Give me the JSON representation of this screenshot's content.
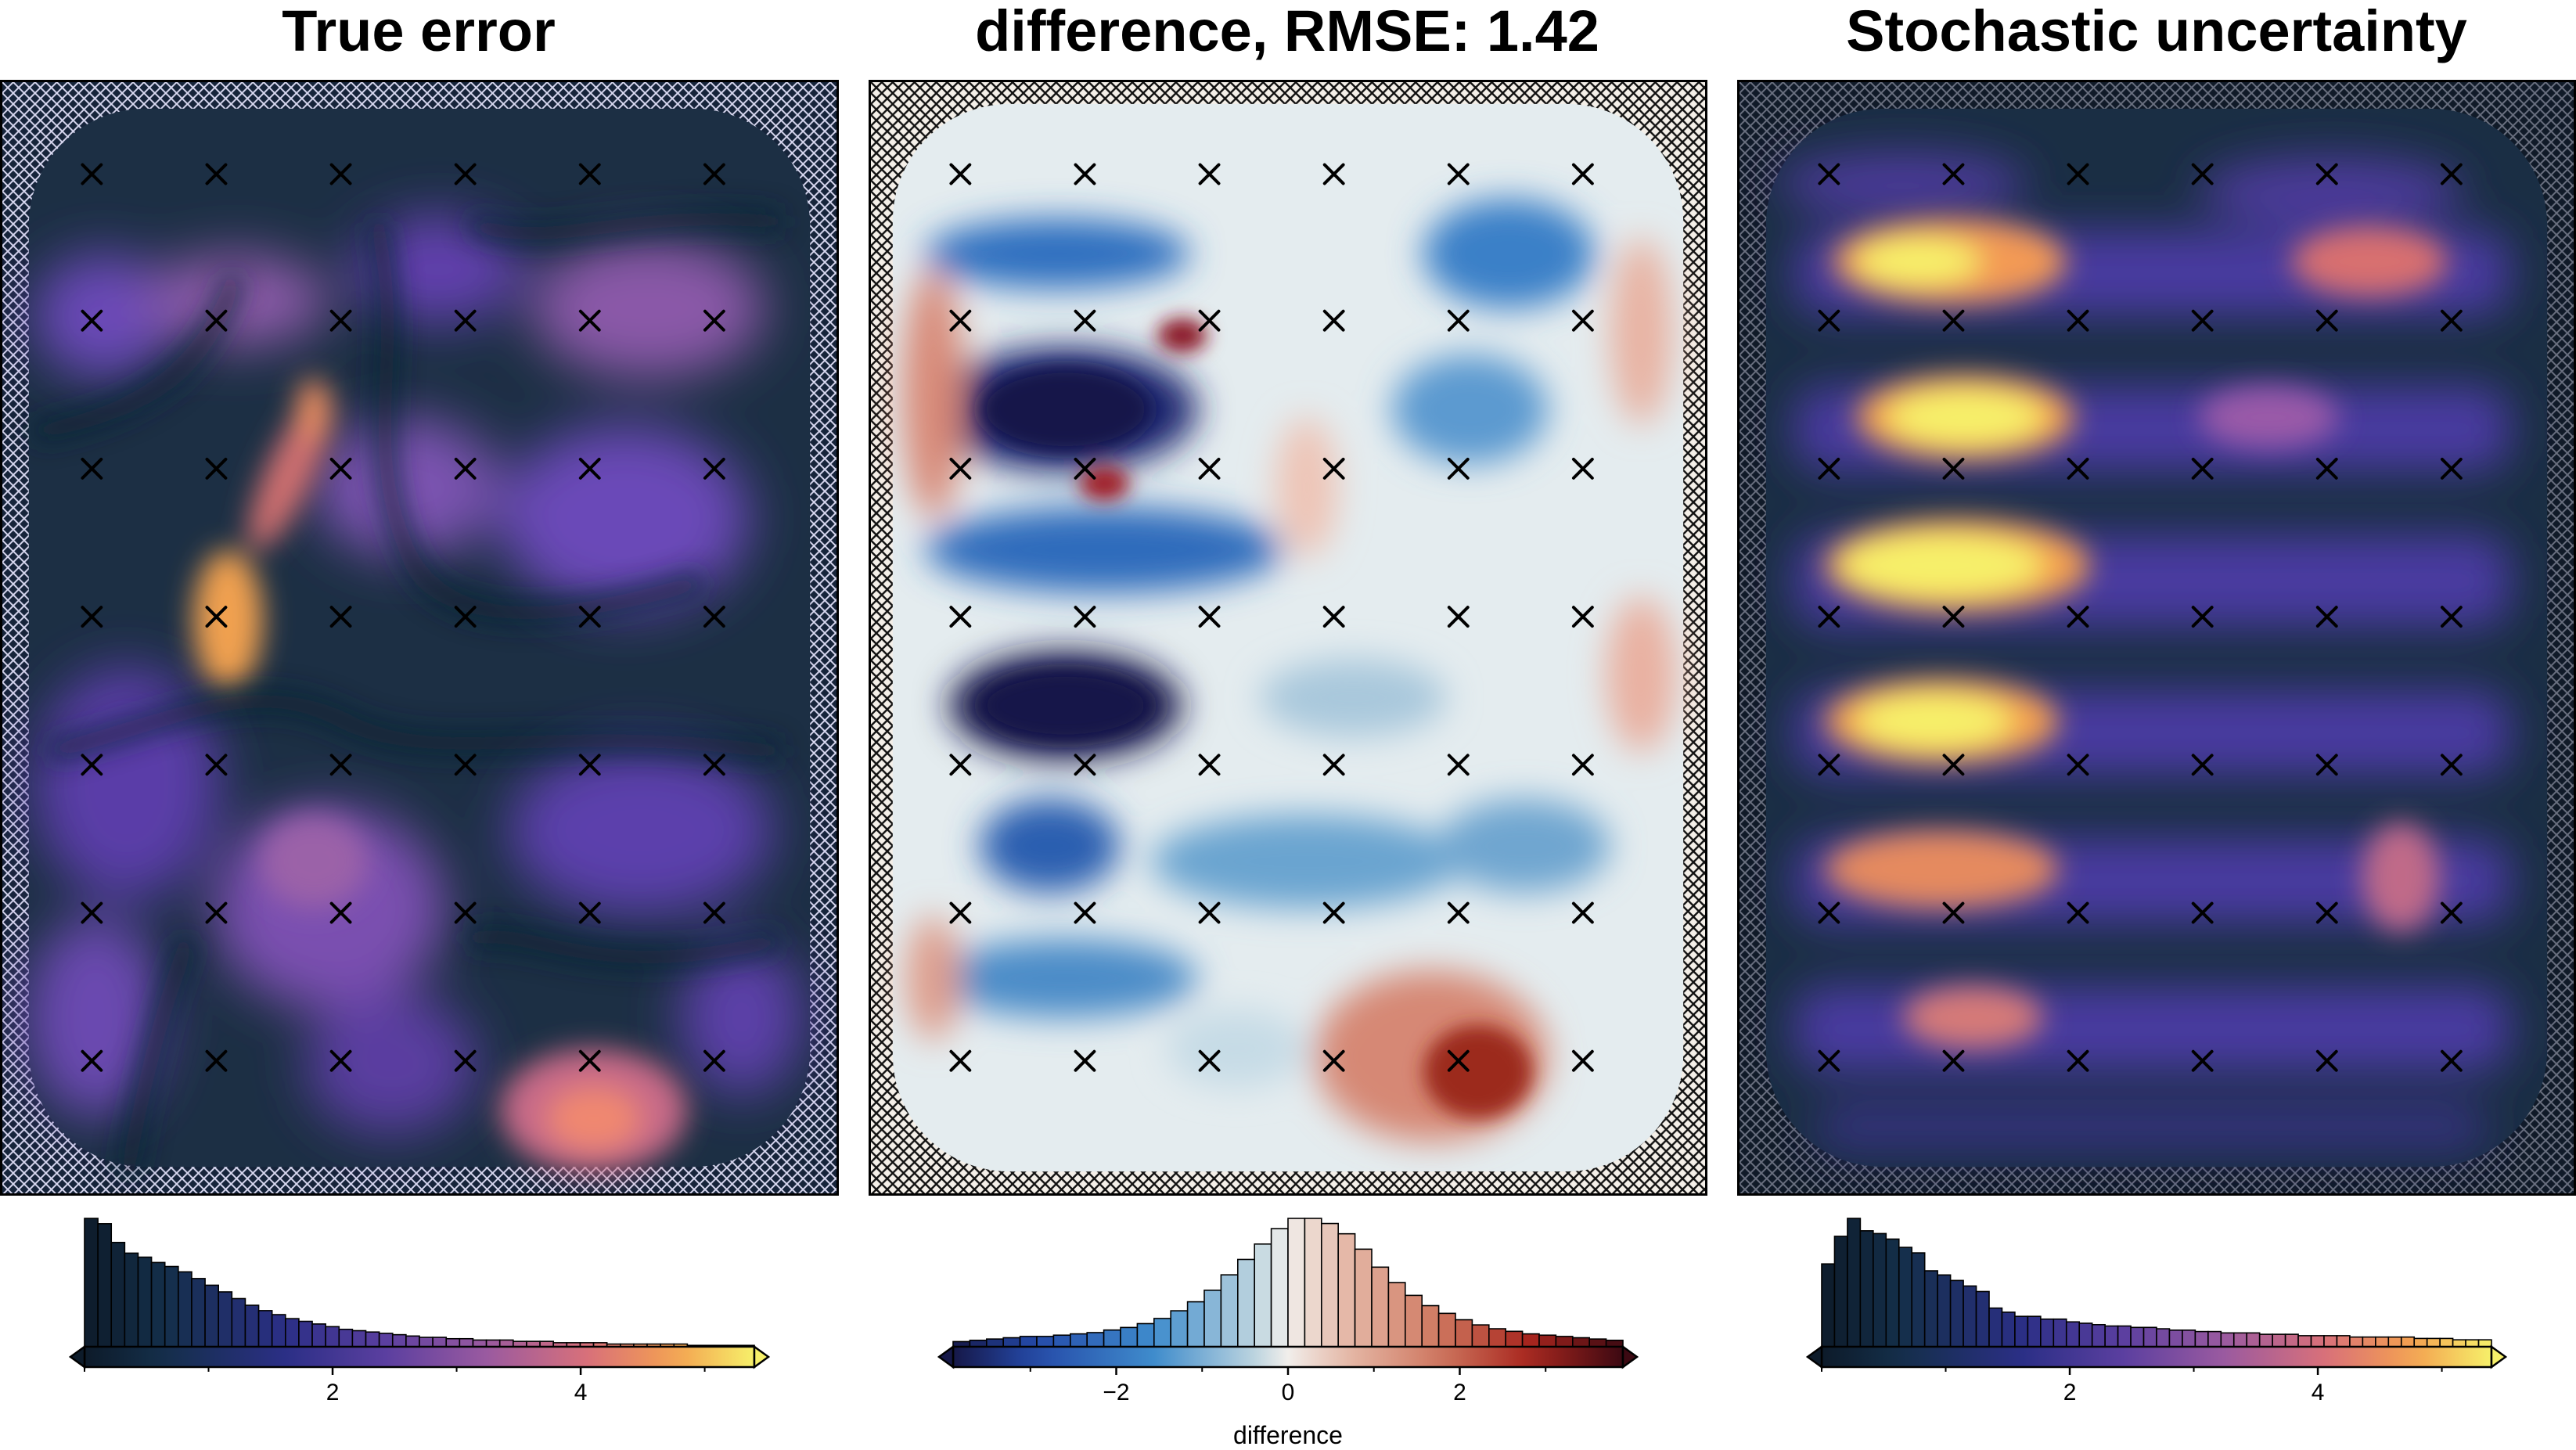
{
  "panels": [
    {
      "id": "true-error",
      "title": "True error",
      "colormap": "thermal",
      "cbar_ticks": [
        2,
        4
      ],
      "cbar_tick_labels": [
        "2",
        "4"
      ],
      "cbar_range": [
        0,
        5.4
      ],
      "cbar_label": "",
      "histogram_counts": [
        96,
        92,
        78,
        70,
        67,
        63,
        60,
        56,
        51,
        46,
        41,
        36,
        31,
        27,
        24,
        21,
        19,
        17,
        15,
        13,
        12,
        11,
        10,
        9,
        8,
        7,
        7,
        6,
        6,
        5,
        5,
        5,
        4,
        4,
        4,
        3,
        3,
        3,
        3,
        2,
        2,
        2,
        2,
        2,
        2,
        1,
        1,
        1,
        1,
        1
      ]
    },
    {
      "id": "difference",
      "title": "difference, RMSE: 1.42",
      "colormap": "balance",
      "cbar_ticks": [
        -2,
        0,
        2
      ],
      "cbar_tick_labels": [
        "−2",
        "0",
        "2"
      ],
      "cbar_range": [
        -3.9,
        3.9
      ],
      "cbar_label": "difference",
      "histogram_counts": [
        4,
        5,
        6,
        7,
        8,
        8,
        9,
        10,
        11,
        13,
        15,
        18,
        22,
        28,
        35,
        44,
        56,
        68,
        80,
        92,
        100,
        100,
        96,
        88,
        76,
        62,
        50,
        40,
        32,
        26,
        21,
        17,
        14,
        12,
        10,
        9,
        8,
        7,
        6,
        5
      ]
    },
    {
      "id": "stochastic-uncertainty",
      "title": "Stochastic uncertainty",
      "colormap": "thermal",
      "cbar_ticks": [
        2,
        4
      ],
      "cbar_tick_labels": [
        "2",
        "4"
      ],
      "cbar_range": [
        0,
        5.4
      ],
      "cbar_label": "",
      "histogram_counts": [
        60,
        80,
        93,
        84,
        82,
        78,
        72,
        68,
        55,
        52,
        48,
        44,
        40,
        28,
        25,
        22,
        22,
        20,
        20,
        18,
        17,
        16,
        15,
        15,
        14,
        14,
        13,
        12,
        12,
        11,
        11,
        10,
        10,
        10,
        9,
        9,
        9,
        8,
        8,
        8,
        8,
        7,
        7,
        7,
        7,
        7,
        6,
        6,
        6,
        5,
        5,
        5
      ]
    }
  ],
  "chart_data": [
    {
      "type": "heatmap",
      "title": "True error",
      "colormap": "thermal",
      "colorbar_ticks": [
        2,
        4
      ],
      "histogram": {
        "type": "bar",
        "range": [
          0,
          5.4
        ],
        "counts": "see panels[0].histogram_counts"
      },
      "markers": "x",
      "marker_grid": {
        "columns": 6,
        "rows": 7
      }
    },
    {
      "type": "heatmap",
      "title": "difference, RMSE: 1.42",
      "colormap": "balance",
      "colorbar_ticks": [
        -2,
        0,
        2
      ],
      "colorbar_label": "difference",
      "rmse": 1.42,
      "histogram": {
        "type": "bar",
        "range": [
          -3.9,
          3.9
        ],
        "counts": "see panels[1].histogram_counts"
      },
      "markers": "x",
      "marker_grid": {
        "columns": 6,
        "rows": 7
      }
    },
    {
      "type": "heatmap",
      "title": "Stochastic uncertainty",
      "colormap": "thermal",
      "colorbar_ticks": [
        2,
        4
      ],
      "histogram": {
        "type": "bar",
        "range": [
          0,
          5.4
        ],
        "counts": "see panels[2].histogram_counts"
      },
      "markers": "x",
      "marker_grid": {
        "columns": 6,
        "rows": 7
      }
    }
  ],
  "colors": {
    "thermal_low": "#0d1b2a",
    "thermal_mid": "#5b3fa0",
    "thermal_high": "#f6f06a",
    "balance_low": "#161848",
    "balance_mid": "#f1eeeb",
    "balance_high": "#3c0912"
  }
}
